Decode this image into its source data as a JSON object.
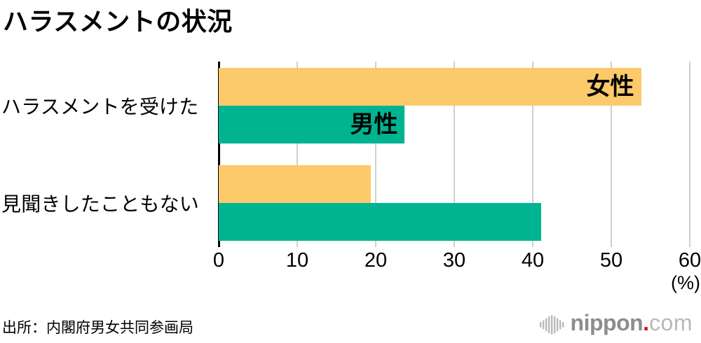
{
  "title": "ハラスメントの状況",
  "source": "出所：内閣府男女共同参画局",
  "logo": {
    "icon": "soundwave-icon",
    "name": "nippon",
    "dot": ".",
    "tld": "com"
  },
  "chart_data": {
    "type": "bar",
    "orientation": "horizontal",
    "title": "ハラスメントの状況",
    "categories": [
      "ハラスメントを受けた",
      "見聞きしたこともない"
    ],
    "series": [
      {
        "name": "女性",
        "color": "#fcc96b",
        "values": [
          53.8,
          19.4
        ]
      },
      {
        "name": "男性",
        "color": "#00b491",
        "values": [
          23.7,
          41.1
        ]
      }
    ],
    "xlabel": "(%)",
    "xlim": [
      0,
      60
    ],
    "xticks": [
      0,
      10,
      20,
      30,
      40,
      50,
      60
    ],
    "grid": true,
    "legend_position": "inside-first-bars",
    "series_label_category_index": 0
  }
}
